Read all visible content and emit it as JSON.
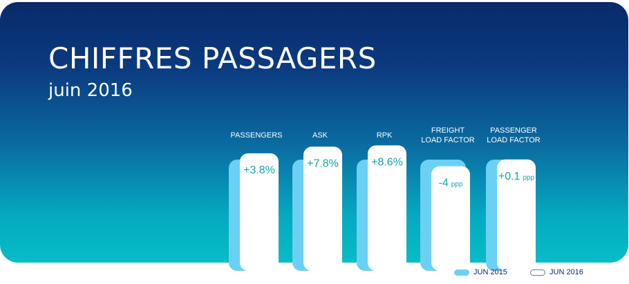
{
  "header": {
    "title": "CHIFFRES PASSAGERS",
    "subtitle": "juin 2016"
  },
  "colors": {
    "jun2015": "#6cd0f3",
    "jun2016": "#ffffff",
    "value_text": "#12a5a5"
  },
  "legend": {
    "jun2015": "JUN 2015",
    "jun2016": "JUN 2016"
  },
  "chart_data": {
    "type": "bar",
    "title": "CHIFFRES PASSAGERS",
    "subtitle": "juin 2016",
    "categories": [
      [
        "PASSENGERS"
      ],
      [
        "ASK"
      ],
      [
        "RPK"
      ],
      [
        "FREIGHT",
        "LOAD FACTOR"
      ],
      [
        "PASSENGER",
        "LOAD FACTOR"
      ]
    ],
    "series": [
      {
        "name": "JUN 2015",
        "values": [
          100,
          100,
          100,
          100,
          100
        ]
      },
      {
        "name": "JUN 2016",
        "values": [
          103.8,
          107.8,
          108.6,
          96,
          100.1
        ]
      }
    ],
    "data_labels": [
      {
        "main": "+3.8%",
        "unit": ""
      },
      {
        "main": "+7.8%",
        "unit": ""
      },
      {
        "main": "+8.6%",
        "unit": ""
      },
      {
        "main": "-4",
        "unit": "ppp"
      },
      {
        "main": "+0.1",
        "unit": "ppp"
      }
    ]
  }
}
